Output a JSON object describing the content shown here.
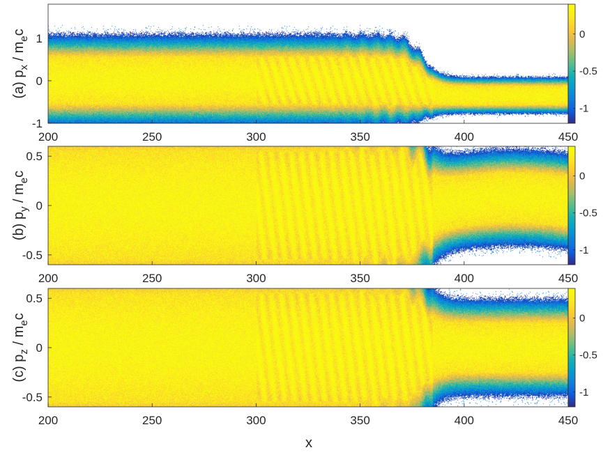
{
  "chart_data": [
    {
      "type": "heatmap",
      "panel": "(a)",
      "ylabel_prefix": "(a) p",
      "ylabel_sub": "x",
      "ylabel_mid": " / m",
      "ylabel_sub2": "e",
      "ylabel_suffix": "c",
      "xlim": [
        200,
        450
      ],
      "ylim": [
        -1,
        1.8
      ],
      "xticks": [
        200,
        250,
        300,
        350,
        400,
        450
      ],
      "yticks": [
        -1,
        0,
        1
      ],
      "colorbar": {
        "range": [
          -1.2,
          0.4
        ],
        "ticks": [
          -1,
          -0.5,
          0
        ]
      },
      "colormap": "parula",
      "beam": {
        "upstream_halfwidth": 0.55,
        "downstream_center": -0.35,
        "downstream_halfwidth": 0.22,
        "shock_x": 380
      }
    },
    {
      "type": "heatmap",
      "panel": "(b)",
      "ylabel_prefix": "(b) p",
      "ylabel_sub": "y",
      "ylabel_mid": " / m",
      "ylabel_sub2": "e",
      "ylabel_suffix": "c",
      "xlim": [
        200,
        450
      ],
      "ylim": [
        -0.6,
        0.6
      ],
      "xticks": [
        200,
        250,
        300,
        350,
        400,
        450
      ],
      "yticks": [
        -0.5,
        0,
        0.5
      ],
      "colorbar": {
        "range": [
          -1.2,
          0.4
        ],
        "ticks": [
          -1,
          -0.5,
          0
        ]
      },
      "colormap": "parula",
      "beam": {
        "upstream_halfwidth": 0.55,
        "downstream_center": 0.0,
        "downstream_halfwidth": 0.25,
        "shock_x": 380
      }
    },
    {
      "type": "heatmap",
      "panel": "(c)",
      "ylabel_prefix": "(c) p",
      "ylabel_sub": "z",
      "ylabel_mid": " / m",
      "ylabel_sub2": "e",
      "ylabel_suffix": "c",
      "xlim": [
        200,
        450
      ],
      "ylim": [
        -0.6,
        0.6
      ],
      "xticks": [
        200,
        250,
        300,
        350,
        400,
        450
      ],
      "yticks": [
        -0.5,
        0,
        0.5
      ],
      "colorbar": {
        "range": [
          -1.2,
          0.4
        ],
        "ticks": [
          -1,
          -0.5,
          0
        ]
      },
      "colormap": "parula",
      "beam": {
        "upstream_halfwidth": 0.55,
        "downstream_center": 0.0,
        "downstream_halfwidth": 0.25,
        "shock_x": 380
      }
    }
  ],
  "xlabel": "x"
}
